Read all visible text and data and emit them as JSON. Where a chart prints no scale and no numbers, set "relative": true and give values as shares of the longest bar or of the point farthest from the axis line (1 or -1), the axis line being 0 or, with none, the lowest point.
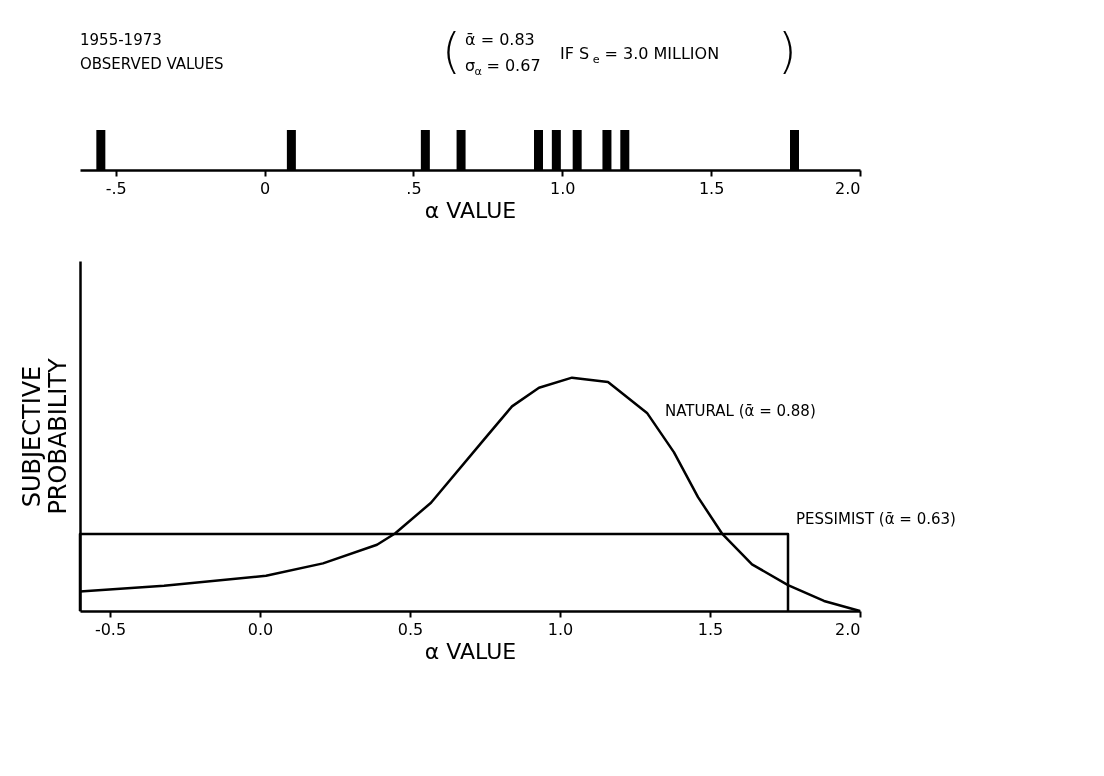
{
  "chart_data": [
    {
      "type": "bar",
      "relative": true,
      "tick_labels": "x",
      "xlabel": "α VALUE",
      "color": "#000000",
      "x": [
        -0.55,
        0.09,
        0.54,
        0.66,
        0.92,
        0.98,
        1.05,
        1.15,
        1.21,
        1.78
      ],
      "values": [
        1,
        1,
        1,
        1,
        1,
        1,
        1,
        1,
        1,
        1
      ],
      "xlim": [
        -0.62,
        2.0
      ],
      "xticks": [
        {
          "value": -0.5,
          "label": "-.5"
        },
        0,
        {
          "value": 0.5,
          "label": ".5"
        },
        {
          "value": 1,
          "label": "1.0"
        },
        {
          "value": 1.5,
          "label": "1.5"
        },
        {
          "value": 2,
          "label": "2.0"
        }
      ],
      "annotations": [
        "1955-1973",
        "OBSERVED VALUES",
        "(",
        "ᾱ = 0.83",
        "σ$_{α}$ = 0.67",
        "IF S$_{e}$ = 3.0 MILLION",
        ")"
      ]
    },
    {
      "type": "line",
      "relative": true,
      "tick_labels": "x",
      "xlabel": "α VALUE",
      "ylabel": "SUBJECTIVE\nPROBABILITY",
      "legend": false,
      "xlim": [
        -0.6,
        2.0
      ],
      "xticks": [
        {
          "value": -0.5,
          "label": "-0.5"
        },
        {
          "value": 0,
          "label": "0.0"
        },
        {
          "value": 0.5,
          "label": "0.5"
        },
        {
          "value": 1,
          "label": "1.0"
        },
        {
          "value": 1.5,
          "label": "1.5"
        },
        {
          "value": 2,
          "label": "2.0"
        }
      ],
      "series": [
        {
          "name": "NATURAL (ᾱ = 0.88)",
          "color": "#000000",
          "x": [
            -0.6,
            -0.32,
            0.02,
            0.21,
            0.39,
            0.45,
            0.57,
            0.75,
            0.84,
            0.93,
            1.04,
            1.16,
            1.29,
            1.38,
            1.46,
            1.54,
            1.64,
            1.76,
            1.88,
            2.0
          ],
          "values": [
            0.084,
            0.108,
            0.151,
            0.204,
            0.284,
            0.332,
            0.464,
            0.74,
            0.877,
            0.957,
            1.0,
            0.981,
            0.849,
            0.68,
            0.488,
            0.332,
            0.2,
            0.111,
            0.043,
            0.0
          ]
        },
        {
          "name": "PESSIMIST (ᾱ = 0.63)",
          "color": "#000000",
          "x": [
            -0.6,
            -0.6,
            1.76,
            1.76
          ],
          "values": [
            0,
            0.33,
            0.33,
            0
          ]
        }
      ]
    }
  ]
}
